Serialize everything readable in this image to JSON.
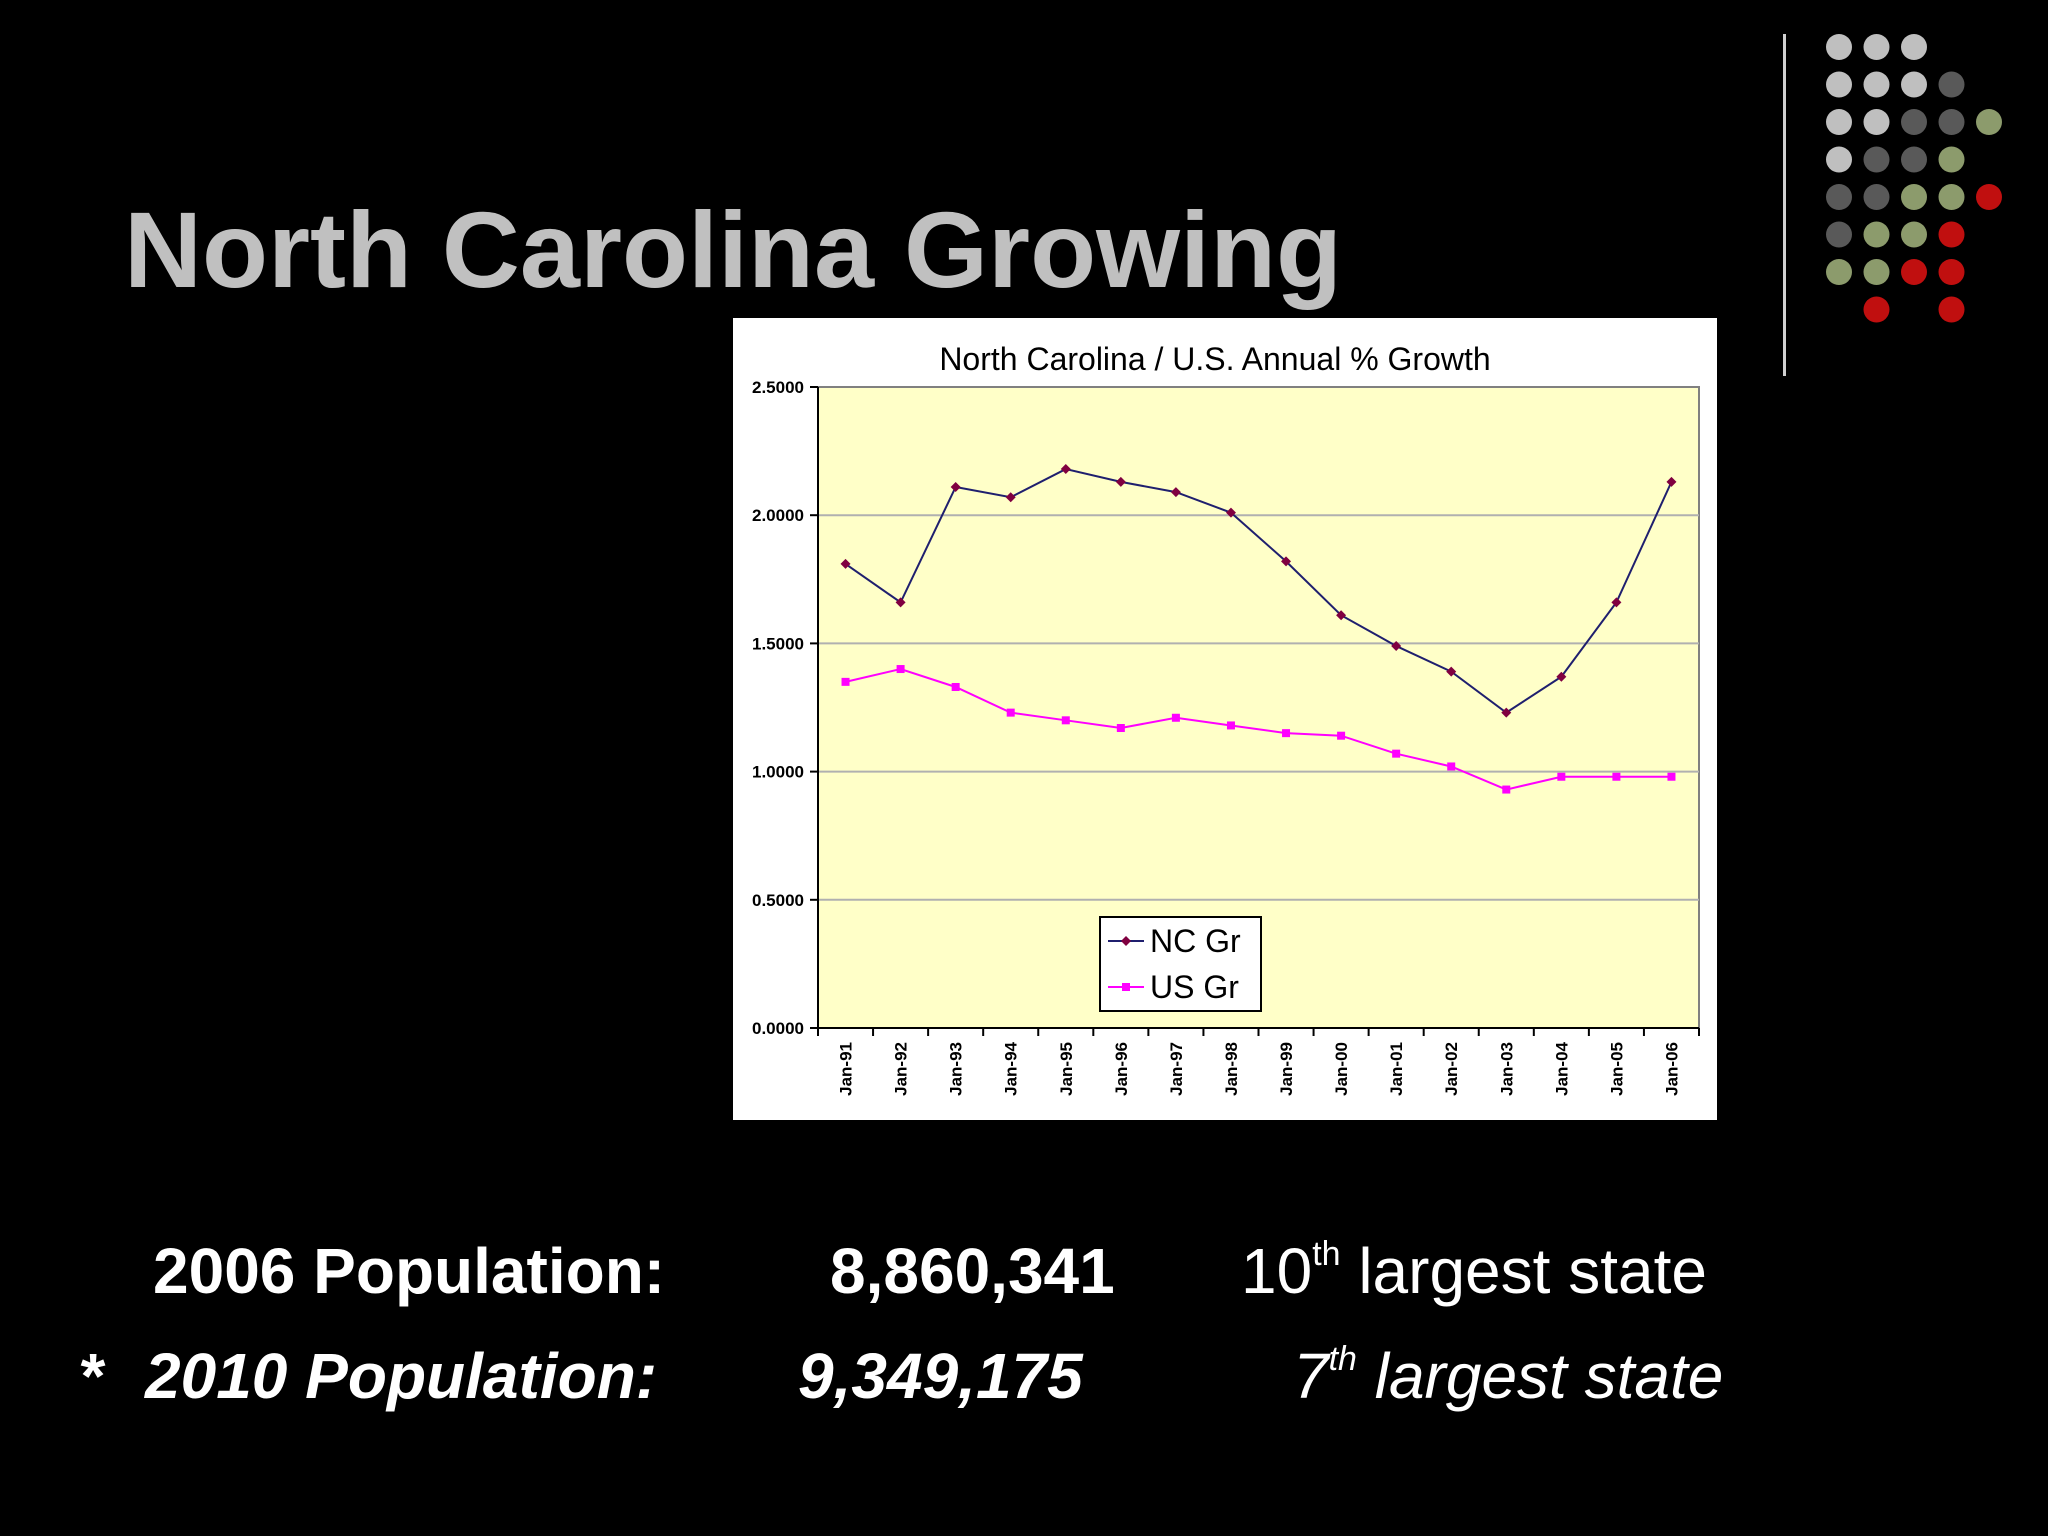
{
  "slide": {
    "title": "North Carolina Growing",
    "colors": {
      "background": "#000000",
      "title": "#c0c0c0",
      "text": "#ffffff",
      "dot_light": "#bfbfbf",
      "dot_dark": "#595959",
      "dot_green": "#8c9b6c",
      "dot_red": "#c00f0f"
    },
    "decoration": {
      "dot_rows": [
        [
          "light",
          "light",
          "light",
          null,
          null
        ],
        [
          "light",
          "light",
          "light",
          "dark",
          null
        ],
        [
          "light",
          "light",
          "dark",
          "dark",
          "green"
        ],
        [
          "light",
          "dark",
          "dark",
          "green",
          null
        ],
        [
          "dark",
          "dark",
          "green",
          "green",
          "red"
        ],
        [
          "dark",
          "green",
          "green",
          "red",
          null
        ],
        [
          "green",
          "green",
          "red",
          "red",
          null
        ],
        [
          null,
          "red",
          null,
          "red",
          null
        ]
      ]
    }
  },
  "population": {
    "line_2006": {
      "label": "2006 Population:",
      "value": "8,860,341",
      "rank_number": "10",
      "rank_suffix": "th",
      "rank_text": "largest state"
    },
    "line_2010": {
      "prefix": "*",
      "label": "2010 Population:",
      "value": "9,349,175",
      "rank_number": "7",
      "rank_suffix": "th",
      "rank_text": "largest state"
    }
  },
  "chart_data": {
    "type": "line",
    "title": "North Carolina / U.S. Annual % Growth",
    "xlabel": "",
    "ylabel": "",
    "categories": [
      "Jan-91",
      "Jan-92",
      "Jan-93",
      "Jan-94",
      "Jan-95",
      "Jan-96",
      "Jan-97",
      "Jan-98",
      "Jan-99",
      "Jan-00",
      "Jan-01",
      "Jan-02",
      "Jan-03",
      "Jan-04",
      "Jan-05",
      "Jan-06"
    ],
    "ylim": [
      0,
      2.5
    ],
    "yticks": [
      0,
      0.5,
      1,
      1.5,
      2,
      2.5
    ],
    "ytick_labels": [
      "0.0000",
      "0.5000",
      "1.0000",
      "1.5000",
      "2.0000",
      "2.5000"
    ],
    "grid": true,
    "legend_position": "bottom-left",
    "plot_background": "#ffffc8",
    "series": [
      {
        "name": "NC Gr",
        "color": "#1f1f6e",
        "marker_color": "#800040",
        "marker": "diamond",
        "values": [
          1.81,
          1.66,
          2.11,
          2.07,
          2.18,
          2.13,
          2.09,
          2.01,
          1.82,
          1.61,
          1.49,
          1.39,
          1.23,
          1.37,
          1.66,
          2.13
        ]
      },
      {
        "name": "US Gr",
        "color": "#ff00ff",
        "marker_color": "#ff00ff",
        "marker": "square",
        "values": [
          1.35,
          1.4,
          1.33,
          1.23,
          1.2,
          1.17,
          1.21,
          1.18,
          1.15,
          1.14,
          1.07,
          1.02,
          0.93,
          0.98,
          0.98,
          0.98
        ]
      }
    ]
  }
}
